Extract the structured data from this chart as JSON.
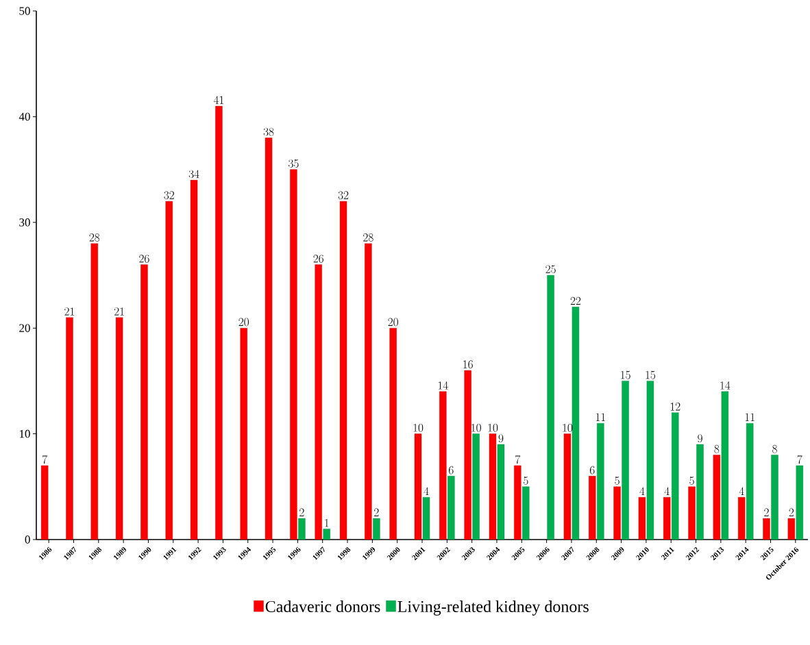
{
  "chart_data": {
    "type": "bar",
    "categories": [
      "1986",
      "1987",
      "1988",
      "1989",
      "1990",
      "1991",
      "1992",
      "1993",
      "1994",
      "1995",
      "1996",
      "1997",
      "1998",
      "1999",
      "2000",
      "2001",
      "2002",
      "2003",
      "2004",
      "2005",
      "2006",
      "2007",
      "2008",
      "2009",
      "2010",
      "2011",
      "2012",
      "2013",
      "2014",
      "2015",
      "October 2016"
    ],
    "series": [
      {
        "name": "Cadaveric donors",
        "color": "#ff0000",
        "values": [
          7,
          21,
          28,
          21,
          26,
          32,
          34,
          41,
          20,
          38,
          35,
          26,
          32,
          28,
          20,
          10,
          14,
          16,
          10,
          7,
          null,
          10,
          6,
          5,
          4,
          4,
          5,
          8,
          4,
          2,
          2
        ]
      },
      {
        "name": "Living-related kidney donors",
        "color": "#00b050",
        "values": [
          null,
          null,
          null,
          null,
          null,
          null,
          null,
          null,
          null,
          null,
          2,
          1,
          null,
          2,
          null,
          4,
          6,
          10,
          9,
          5,
          25,
          22,
          11,
          15,
          15,
          12,
          9,
          14,
          11,
          8,
          7
        ]
      }
    ],
    "ylim": [
      0,
      50
    ],
    "yticks": [
      0,
      10,
      20,
      30,
      40,
      50
    ],
    "data_labels": true,
    "legend": "bottom"
  }
}
